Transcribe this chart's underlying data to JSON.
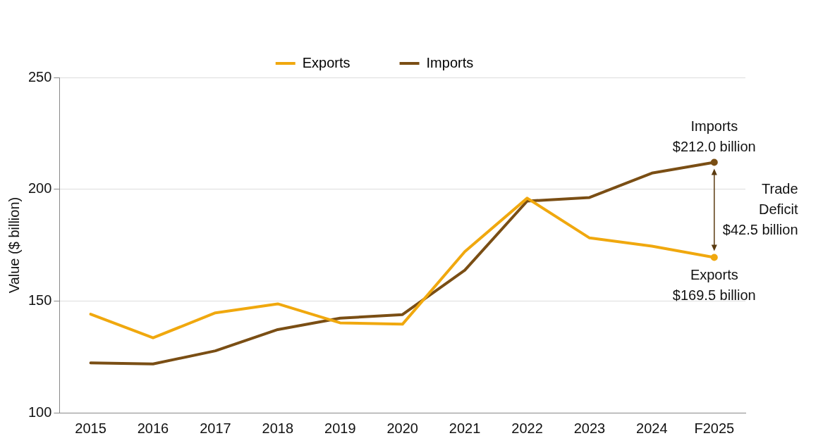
{
  "chart_data": {
    "type": "line",
    "ylabel": "Value ($ billion)",
    "categories": [
      "2015",
      "2016",
      "2017",
      "2018",
      "2019",
      "2020",
      "2021",
      "2022",
      "2023",
      "2024",
      "F2025"
    ],
    "series": [
      {
        "name": "Exports",
        "color": "#f0a80e",
        "values": [
          144.1,
          133.5,
          144.7,
          148.7,
          140.2,
          139.6,
          172.1,
          196.0,
          178.2,
          174.5,
          169.5
        ]
      },
      {
        "name": "Imports",
        "color": "#7a4e14",
        "values": [
          122.3,
          121.8,
          127.7,
          137.2,
          142.3,
          143.9,
          163.8,
          194.7,
          196.3,
          207.2,
          212.0
        ]
      }
    ],
    "ylim": [
      100,
      250
    ],
    "yticks": [
      100,
      150,
      200,
      250
    ],
    "grid": "y",
    "legend": "top",
    "annotations": [
      {
        "text": "Imports\n$212.0 billion",
        "x": "F2025",
        "y": 212.0
      },
      {
        "text": "Exports\n$169.5 billion",
        "x": "F2025",
        "y": 169.5
      },
      "Trade\nDeficit\n$42.5 billion"
    ]
  }
}
